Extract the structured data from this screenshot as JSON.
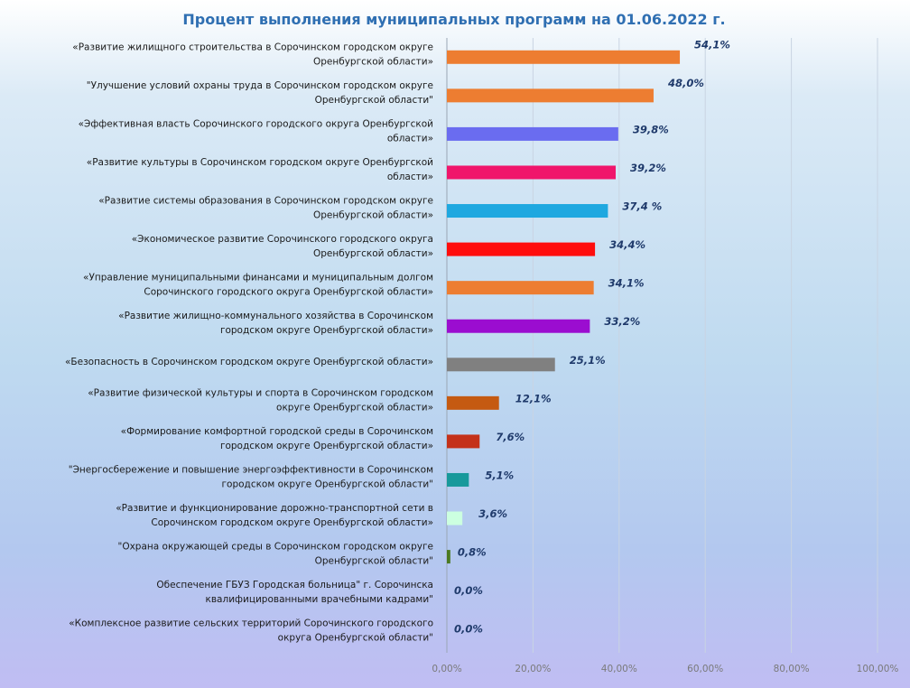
{
  "chart_data": {
    "type": "bar",
    "orientation": "horizontal",
    "title": "Процент выполнения муниципальных программ на 01.06.2022 г.",
    "xlim": [
      0,
      100
    ],
    "grid": true,
    "tick_labels": [
      "0,00%",
      "20,00%",
      "40,00%",
      "60,00%",
      "80,00%",
      "100,00%"
    ],
    "categories": [
      [
        "«Развитие жилищного строительства в Сорочинском городском округе",
        "Оренбургской области»"
      ],
      [
        "\"Улучшение  условий охраны труда в Сорочинском городском округе",
        "Оренбургской области\""
      ],
      [
        "«Эффективная  власть Сорочинского городского округа Оренбургской",
        "области»"
      ],
      [
        "«Развитие культуры в Сорочинском городском округе Оренбургской",
        "области»"
      ],
      [
        "«Развитие системы образования в Сорочинском городском округе",
        "Оренбургской области»"
      ],
      [
        "«Экономическое  развитие Сорочинского городского округа",
        "Оренбургской области»"
      ],
      [
        "«Управление муниципальными финансами и муниципальным долгом",
        "Сорочинского городского округа Оренбургской области»"
      ],
      [
        "«Развитие жилищно-коммунального хозяйства в Сорочинском",
        "городском округе Оренбургской области»"
      ],
      [
        "«Безопасность в Сорочинском городском округе Оренбургской области»"
      ],
      [
        "«Развитие физической культуры и спорта в Сорочинском городском",
        "округе Оренбургской области»"
      ],
      [
        "«Формирование комфортной городской среды в Сорочинском",
        "городском округе Оренбургской области»"
      ],
      [
        "\"Энергосбережение  и повышение  энергоэффективности  в Сорочинском",
        "городском округе Оренбургской области\""
      ],
      [
        "«Развитие и функционирование дорожно-транспортной сети в",
        "Сорочинском городском округе Оренбургской области»"
      ],
      [
        "\"Охрана окружающей среды в Сорочинском городском округе",
        "Оренбургской области\""
      ],
      [
        "Обеспечение  ГБУЗ Городская больница\" г. Сорочинска",
        "квалифицированными врачебными кадрами\""
      ],
      [
        "«Комплексное  развитие сельских территорий  Сорочинского городского",
        "округа Оренбургской области\""
      ]
    ],
    "values": [
      54.1,
      48.0,
      39.8,
      39.2,
      37.4,
      34.4,
      34.1,
      33.2,
      25.1,
      12.1,
      7.6,
      5.1,
      3.6,
      0.8,
      0.0,
      0.0
    ],
    "value_labels": [
      "54,1%",
      "48,0%",
      "39,8%",
      "39,2%",
      "37,4 %",
      "34,4%",
      "34,1%",
      "33,2%",
      "25,1%",
      "12,1%",
      "7,6%",
      "5,1%",
      "3,6%",
      "0,8%",
      "0,0%",
      "0,0%"
    ],
    "colors": [
      "#ed7d31",
      "#ed7d31",
      "#6a6cf0",
      "#f0156b",
      "#1fa8e0",
      "#ff0d0d",
      "#ed7d31",
      "#9b0dd0",
      "#808080",
      "#c55a11",
      "#c4311a",
      "#17999b",
      "#ccffe0",
      "#4b7a20",
      "#bfbfbf",
      "#bfbfbf"
    ]
  }
}
